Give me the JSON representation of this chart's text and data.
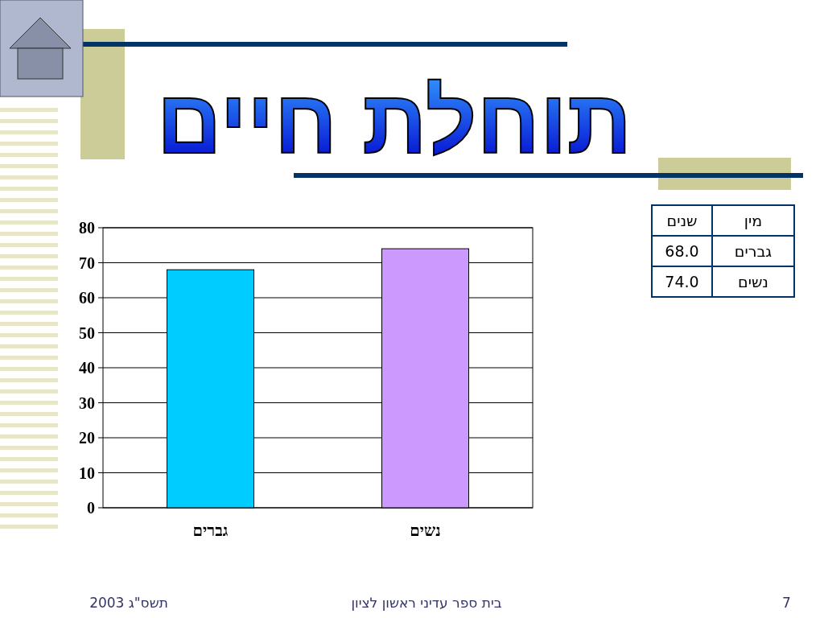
{
  "chart_data": {
    "type": "bar",
    "title": "תוחלת חיים",
    "categories": [
      "גברים",
      "נשים"
    ],
    "series": [
      {
        "colors": [
          "#00ccff",
          "#cc99ff"
        ],
        "values": [
          68,
          74
        ]
      }
    ],
    "ylim": [
      0,
      80
    ],
    "yticks": [
      0,
      10,
      20,
      30,
      40,
      50,
      60,
      70,
      80
    ],
    "grid": "y",
    "annotations": [
      "מין",
      "שנים",
      "68.0",
      "74.0",
      "תשס\"ג 2003",
      "בית ספר עדיני ראשון לציון",
      "7"
    ]
  }
}
